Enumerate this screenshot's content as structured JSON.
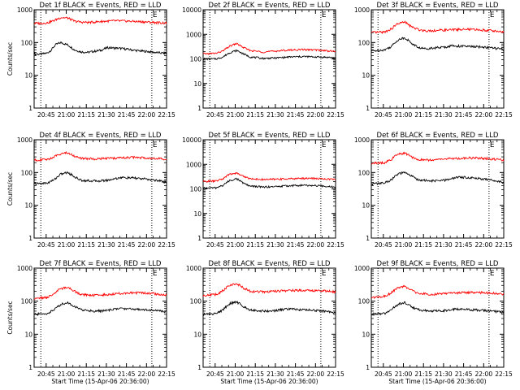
{
  "figure": {
    "background": "#ffffff",
    "axis_color": "#000000",
    "events_color": "#000000",
    "lld_color": "#ff0000"
  },
  "chart_data": [
    {
      "type": "line",
      "title": "Det 1f BLACK = Events, RED = LLD",
      "ylabel": "Counts/sec",
      "xlabel": "",
      "yscale": "log",
      "ylim": [
        1,
        1000
      ],
      "yticks": [
        "1",
        "10",
        "100",
        "1000"
      ],
      "xticks": [
        "20:45",
        "21:00",
        "21:15",
        "21:30",
        "21:45",
        "22:00",
        "22:15"
      ],
      "x_range_minutes": [
        0,
        99
      ],
      "markers": [
        {
          "label": "",
          "t": 5
        },
        {
          "label": "E",
          "t": 88
        }
      ],
      "series": [
        {
          "name": "Events",
          "color": "#000000",
          "x": [
            0,
            5,
            10,
            13,
            16,
            20,
            25,
            30,
            35,
            40,
            45,
            50,
            55,
            60,
            65,
            70,
            75,
            80,
            85,
            90,
            95,
            99
          ],
          "values": [
            45,
            44,
            48,
            60,
            85,
            100,
            85,
            60,
            52,
            50,
            54,
            58,
            70,
            68,
            66,
            62,
            58,
            55,
            53,
            50,
            48,
            47
          ]
        },
        {
          "name": "LLD",
          "color": "#ff0000",
          "x": [
            0,
            5,
            10,
            15,
            20,
            25,
            30,
            35,
            40,
            45,
            50,
            55,
            60,
            65,
            70,
            75,
            80,
            85,
            90,
            95,
            99
          ],
          "values": [
            390,
            385,
            400,
            470,
            580,
            560,
            450,
            420,
            410,
            420,
            440,
            450,
            460,
            455,
            450,
            440,
            430,
            420,
            410,
            400,
            390
          ]
        }
      ]
    },
    {
      "type": "line",
      "title": "Det 2f BLACK = Events, RED = LLD",
      "ylabel": "",
      "xlabel": "",
      "yscale": "log",
      "ylim": [
        1,
        10000
      ],
      "yticks": [
        "1",
        "10",
        "100",
        "1000",
        "10000"
      ],
      "xticks": [
        "20:45",
        "21:00",
        "21:15",
        "21:30",
        "21:45",
        "22:00",
        "22:15"
      ],
      "x_range_minutes": [
        0,
        99
      ],
      "markers": [
        {
          "label": "",
          "t": 5
        },
        {
          "label": "E",
          "t": 88
        }
      ],
      "series": [
        {
          "name": "Events",
          "color": "#000000",
          "x": [
            0,
            10,
            15,
            20,
            25,
            30,
            35,
            45,
            55,
            65,
            75,
            85,
            95,
            99
          ],
          "values": [
            100,
            100,
            120,
            180,
            220,
            160,
            120,
            105,
            110,
            120,
            125,
            120,
            115,
            110
          ]
        },
        {
          "name": "LLD",
          "color": "#ff0000",
          "x": [
            0,
            10,
            15,
            20,
            25,
            30,
            35,
            45,
            55,
            65,
            75,
            85,
            95,
            99
          ],
          "values": [
            160,
            170,
            210,
            330,
            420,
            290,
            220,
            190,
            210,
            230,
            240,
            230,
            210,
            200
          ]
        }
      ]
    },
    {
      "type": "line",
      "title": "Det 3f BLACK = Events, RED = LLD",
      "ylabel": "",
      "xlabel": "",
      "yscale": "log",
      "ylim": [
        1,
        1000
      ],
      "yticks": [
        "1",
        "10",
        "100",
        "1000"
      ],
      "xticks": [
        "20:45",
        "21:00",
        "21:15",
        "21:30",
        "21:45",
        "22:00",
        "22:15"
      ],
      "x_range_minutes": [
        0,
        99
      ],
      "markers": [
        {
          "label": "",
          "t": 5
        },
        {
          "label": "E",
          "t": 88
        }
      ],
      "series": [
        {
          "name": "Events",
          "color": "#000000",
          "x": [
            0,
            10,
            15,
            20,
            25,
            30,
            35,
            40,
            45,
            55,
            60,
            65,
            75,
            85,
            95,
            99
          ],
          "values": [
            55,
            60,
            75,
            120,
            140,
            95,
            70,
            65,
            68,
            72,
            80,
            78,
            75,
            72,
            65,
            60
          ]
        },
        {
          "name": "LLD",
          "color": "#ff0000",
          "x": [
            0,
            10,
            15,
            20,
            25,
            30,
            35,
            40,
            45,
            55,
            65,
            75,
            85,
            95,
            99
          ],
          "values": [
            200,
            210,
            260,
            380,
            420,
            300,
            250,
            230,
            230,
            240,
            250,
            250,
            240,
            220,
            210
          ]
        }
      ]
    },
    {
      "type": "line",
      "title": "Det 4f BLACK = Events, RED = LLD",
      "ylabel": "Counts/sec",
      "xlabel": "",
      "yscale": "log",
      "ylim": [
        1,
        1000
      ],
      "yticks": [
        "1",
        "10",
        "100",
        "1000"
      ],
      "xticks": [
        "20:45",
        "21:00",
        "21:15",
        "21:30",
        "21:45",
        "22:00",
        "22:15"
      ],
      "x_range_minutes": [
        0,
        99
      ],
      "markers": [
        {
          "label": "",
          "t": 5
        },
        {
          "label": "E",
          "t": 88
        }
      ],
      "series": [
        {
          "name": "Events",
          "color": "#000000",
          "x": [
            0,
            10,
            15,
            20,
            25,
            30,
            35,
            45,
            55,
            60,
            65,
            75,
            85,
            95,
            99
          ],
          "values": [
            45,
            48,
            60,
            90,
            100,
            75,
            58,
            55,
            58,
            65,
            70,
            68,
            62,
            55,
            50
          ]
        },
        {
          "name": "LLD",
          "color": "#ff0000",
          "x": [
            0,
            10,
            15,
            20,
            25,
            30,
            35,
            45,
            55,
            65,
            75,
            85,
            95,
            99
          ],
          "values": [
            240,
            250,
            300,
            380,
            400,
            320,
            270,
            260,
            270,
            280,
            290,
            280,
            260,
            240
          ]
        }
      ]
    },
    {
      "type": "line",
      "title": "Det 5f BLACK = Events, RED = LLD",
      "ylabel": "",
      "xlabel": "",
      "yscale": "log",
      "ylim": [
        1,
        10000
      ],
      "yticks": [
        "1",
        "10",
        "100",
        "1000",
        "10000"
      ],
      "xticks": [
        "20:45",
        "21:00",
        "21:15",
        "21:30",
        "21:45",
        "22:00",
        "22:15"
      ],
      "x_range_minutes": [
        0,
        99
      ],
      "markers": [
        {
          "label": "",
          "t": 5
        },
        {
          "label": "E",
          "t": 88
        }
      ],
      "series": [
        {
          "name": "Events",
          "color": "#000000",
          "x": [
            0,
            10,
            15,
            20,
            25,
            30,
            35,
            45,
            55,
            65,
            75,
            85,
            95,
            99
          ],
          "values": [
            110,
            110,
            140,
            220,
            260,
            170,
            130,
            120,
            125,
            135,
            140,
            135,
            125,
            120
          ]
        },
        {
          "name": "LLD",
          "color": "#ff0000",
          "x": [
            0,
            10,
            15,
            20,
            25,
            30,
            35,
            45,
            55,
            65,
            75,
            85,
            95,
            99
          ],
          "values": [
            200,
            210,
            260,
            400,
            440,
            330,
            260,
            240,
            250,
            260,
            270,
            265,
            250,
            240
          ]
        }
      ]
    },
    {
      "type": "line",
      "title": "Det 6f BLACK = Events, RED = LLD",
      "ylabel": "",
      "xlabel": "",
      "yscale": "log",
      "ylim": [
        1,
        1000
      ],
      "yticks": [
        "1",
        "10",
        "100",
        "1000"
      ],
      "xticks": [
        "20:45",
        "21:00",
        "21:15",
        "21:30",
        "21:45",
        "22:00",
        "22:15"
      ],
      "x_range_minutes": [
        0,
        99
      ],
      "markers": [
        {
          "label": "",
          "t": 5
        },
        {
          "label": "E",
          "t": 88
        }
      ],
      "series": [
        {
          "name": "Events",
          "color": "#000000",
          "x": [
            0,
            10,
            15,
            20,
            25,
            30,
            35,
            45,
            55,
            60,
            65,
            75,
            85,
            95,
            99
          ],
          "values": [
            45,
            48,
            60,
            90,
            100,
            78,
            60,
            55,
            58,
            65,
            72,
            70,
            62,
            55,
            50
          ]
        },
        {
          "name": "LLD",
          "color": "#ff0000",
          "x": [
            0,
            10,
            15,
            20,
            25,
            30,
            35,
            45,
            55,
            65,
            75,
            85,
            95,
            99
          ],
          "values": [
            190,
            200,
            250,
            360,
            390,
            300,
            250,
            240,
            260,
            270,
            280,
            270,
            250,
            230
          ]
        }
      ]
    },
    {
      "type": "line",
      "title": "Det 7f BLACK = Events, RED = LLD",
      "ylabel": "Counts/sec",
      "xlabel": "Start Time (15-Apr-06 20:36:00)",
      "yscale": "log",
      "ylim": [
        1,
        1000
      ],
      "yticks": [
        "1",
        "10",
        "100",
        "1000"
      ],
      "xticks": [
        "20:45",
        "21:00",
        "21:15",
        "21:30",
        "21:45",
        "22:00",
        "22:15"
      ],
      "x_range_minutes": [
        0,
        99
      ],
      "markers": [
        {
          "label": "",
          "t": 5
        },
        {
          "label": "E",
          "t": 88
        }
      ],
      "series": [
        {
          "name": "Events",
          "color": "#000000",
          "x": [
            0,
            10,
            15,
            20,
            25,
            30,
            35,
            45,
            55,
            60,
            65,
            75,
            85,
            95,
            99
          ],
          "values": [
            40,
            42,
            55,
            80,
            90,
            70,
            55,
            50,
            52,
            58,
            60,
            58,
            55,
            50,
            48
          ]
        },
        {
          "name": "LLD",
          "color": "#ff0000",
          "x": [
            0,
            10,
            15,
            20,
            25,
            30,
            35,
            45,
            55,
            65,
            75,
            85,
            95,
            99
          ],
          "values": [
            120,
            130,
            170,
            240,
            260,
            200,
            160,
            150,
            160,
            175,
            180,
            175,
            160,
            150
          ]
        }
      ]
    },
    {
      "type": "line",
      "title": "Det 8f BLACK = Events, RED = LLD",
      "ylabel": "",
      "xlabel": "Start Time (15-Apr-06 20:36:00)",
      "yscale": "log",
      "ylim": [
        1,
        1000
      ],
      "yticks": [
        "1",
        "10",
        "100",
        "1000"
      ],
      "xticks": [
        "20:45",
        "21:00",
        "21:15",
        "21:30",
        "21:45",
        "22:00",
        "22:15"
      ],
      "x_range_minutes": [
        0,
        99
      ],
      "markers": [
        {
          "label": "",
          "t": 5
        },
        {
          "label": "E",
          "t": 88
        }
      ],
      "series": [
        {
          "name": "Events",
          "color": "#000000",
          "x": [
            0,
            10,
            15,
            20,
            25,
            30,
            35,
            45,
            55,
            60,
            65,
            75,
            85,
            95,
            99
          ],
          "values": [
            40,
            42,
            55,
            85,
            95,
            70,
            55,
            50,
            52,
            56,
            58,
            55,
            52,
            48,
            45
          ]
        },
        {
          "name": "LLD",
          "color": "#ff0000",
          "x": [
            0,
            10,
            15,
            20,
            25,
            30,
            35,
            45,
            55,
            65,
            75,
            85,
            95,
            99
          ],
          "values": [
            150,
            160,
            210,
            310,
            340,
            250,
            200,
            190,
            200,
            210,
            215,
            210,
            200,
            190
          ]
        }
      ]
    },
    {
      "type": "line",
      "title": "Det 9f BLACK = Events, RED = LLD",
      "ylabel": "",
      "xlabel": "Start Time (15-Apr-06 20:36:00)",
      "yscale": "log",
      "ylim": [
        1,
        1000
      ],
      "yticks": [
        "1",
        "10",
        "100",
        "1000"
      ],
      "xticks": [
        "20:45",
        "21:00",
        "21:15",
        "21:30",
        "21:45",
        "22:00",
        "22:15"
      ],
      "x_range_minutes": [
        0,
        99
      ],
      "markers": [
        {
          "label": "",
          "t": 5
        },
        {
          "label": "E",
          "t": 88
        }
      ],
      "series": [
        {
          "name": "Events",
          "color": "#000000",
          "x": [
            0,
            10,
            15,
            20,
            25,
            30,
            35,
            45,
            55,
            60,
            65,
            75,
            85,
            95,
            99
          ],
          "values": [
            40,
            42,
            55,
            80,
            90,
            68,
            55,
            50,
            52,
            56,
            58,
            55,
            52,
            48,
            45
          ]
        },
        {
          "name": "LLD",
          "color": "#ff0000",
          "x": [
            0,
            10,
            15,
            20,
            25,
            30,
            35,
            45,
            55,
            65,
            75,
            85,
            95,
            99
          ],
          "values": [
            130,
            140,
            180,
            260,
            280,
            210,
            170,
            160,
            170,
            180,
            185,
            180,
            170,
            160
          ]
        }
      ]
    }
  ]
}
